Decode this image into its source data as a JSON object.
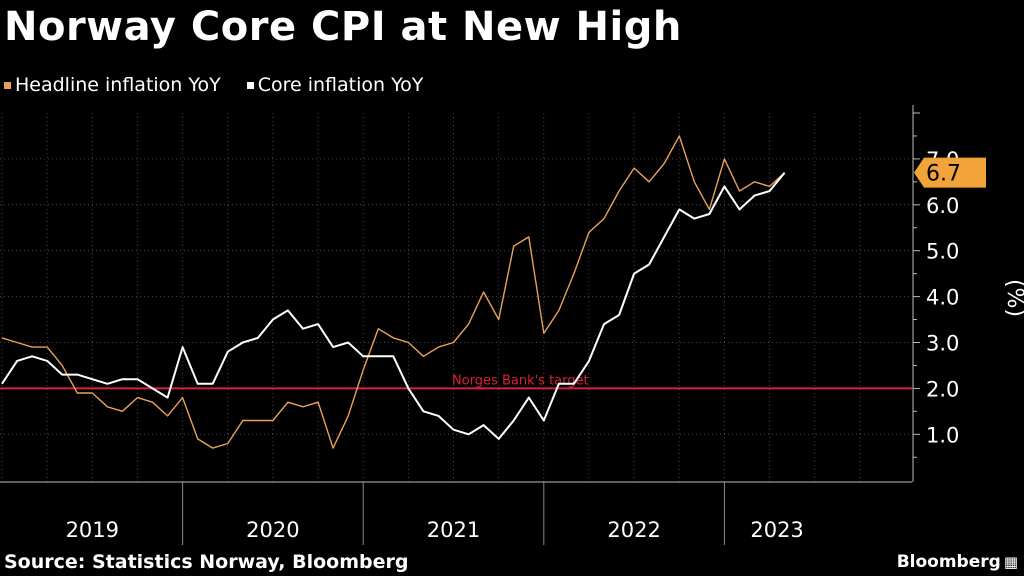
{
  "colors": {
    "background": "#000000",
    "headline": "#e8a15a",
    "core": "#ffffff",
    "target": "#d6223a",
    "grid": "#4a4a4a",
    "callout": "#f2a33a"
  },
  "chart_data": {
    "type": "line",
    "title": "Norway Core CPI at New High",
    "ylabel": "(%)",
    "ylim": [
      0,
      8
    ],
    "yticks": [
      1.0,
      2.0,
      3.0,
      4.0,
      5.0,
      6.0,
      7.0
    ],
    "ytick_labels": [
      "1.0",
      "2.0",
      "3.0",
      "4.0",
      "5.0",
      "6.0",
      "7.0"
    ],
    "x_start": "2019-01",
    "x_end": "2023-07",
    "years": [
      "2019",
      "2020",
      "2021",
      "2022",
      "2023"
    ],
    "legend_position": "top-left",
    "grid": true,
    "series": [
      {
        "name": "Headline inflation YoY",
        "color": "#e8a15a",
        "values": [
          3.1,
          3.0,
          2.9,
          2.9,
          2.5,
          1.9,
          1.9,
          1.6,
          1.5,
          1.8,
          1.7,
          1.4,
          1.8,
          0.9,
          0.7,
          0.8,
          1.3,
          1.3,
          1.3,
          1.7,
          1.6,
          1.7,
          0.7,
          1.4,
          2.4,
          3.3,
          3.1,
          3.0,
          2.7,
          2.9,
          3.0,
          3.4,
          4.1,
          3.5,
          5.1,
          5.3,
          3.2,
          3.7,
          4.5,
          5.4,
          5.7,
          6.3,
          6.8,
          6.5,
          6.9,
          7.5,
          6.5,
          5.9,
          7.0,
          6.3,
          6.5,
          6.4,
          6.7
        ],
        "start": "2019-01"
      },
      {
        "name": "Core inflation YoY",
        "color": "#ffffff",
        "values": [
          2.1,
          2.6,
          2.7,
          2.6,
          2.3,
          2.3,
          2.2,
          2.1,
          2.2,
          2.2,
          2.0,
          1.8,
          2.9,
          2.1,
          2.1,
          2.8,
          3.0,
          3.1,
          3.5,
          3.7,
          3.3,
          3.4,
          2.9,
          3.0,
          2.7,
          2.7,
          2.7,
          2.0,
          1.5,
          1.4,
          1.1,
          1.0,
          1.2,
          0.9,
          1.3,
          1.8,
          1.3,
          2.1,
          2.1,
          2.6,
          3.4,
          3.6,
          4.5,
          4.7,
          5.3,
          5.9,
          5.7,
          5.8,
          6.4,
          5.9,
          6.2,
          6.3,
          6.7
        ],
        "start": "2019-01"
      }
    ],
    "reference_line": {
      "value": 2.0,
      "label": "Norges Bank's target"
    },
    "callout": {
      "value": 6.7,
      "label": "6.7"
    }
  },
  "source": "Source: Statistics Norway, Bloomberg",
  "brand": "Bloomberg"
}
